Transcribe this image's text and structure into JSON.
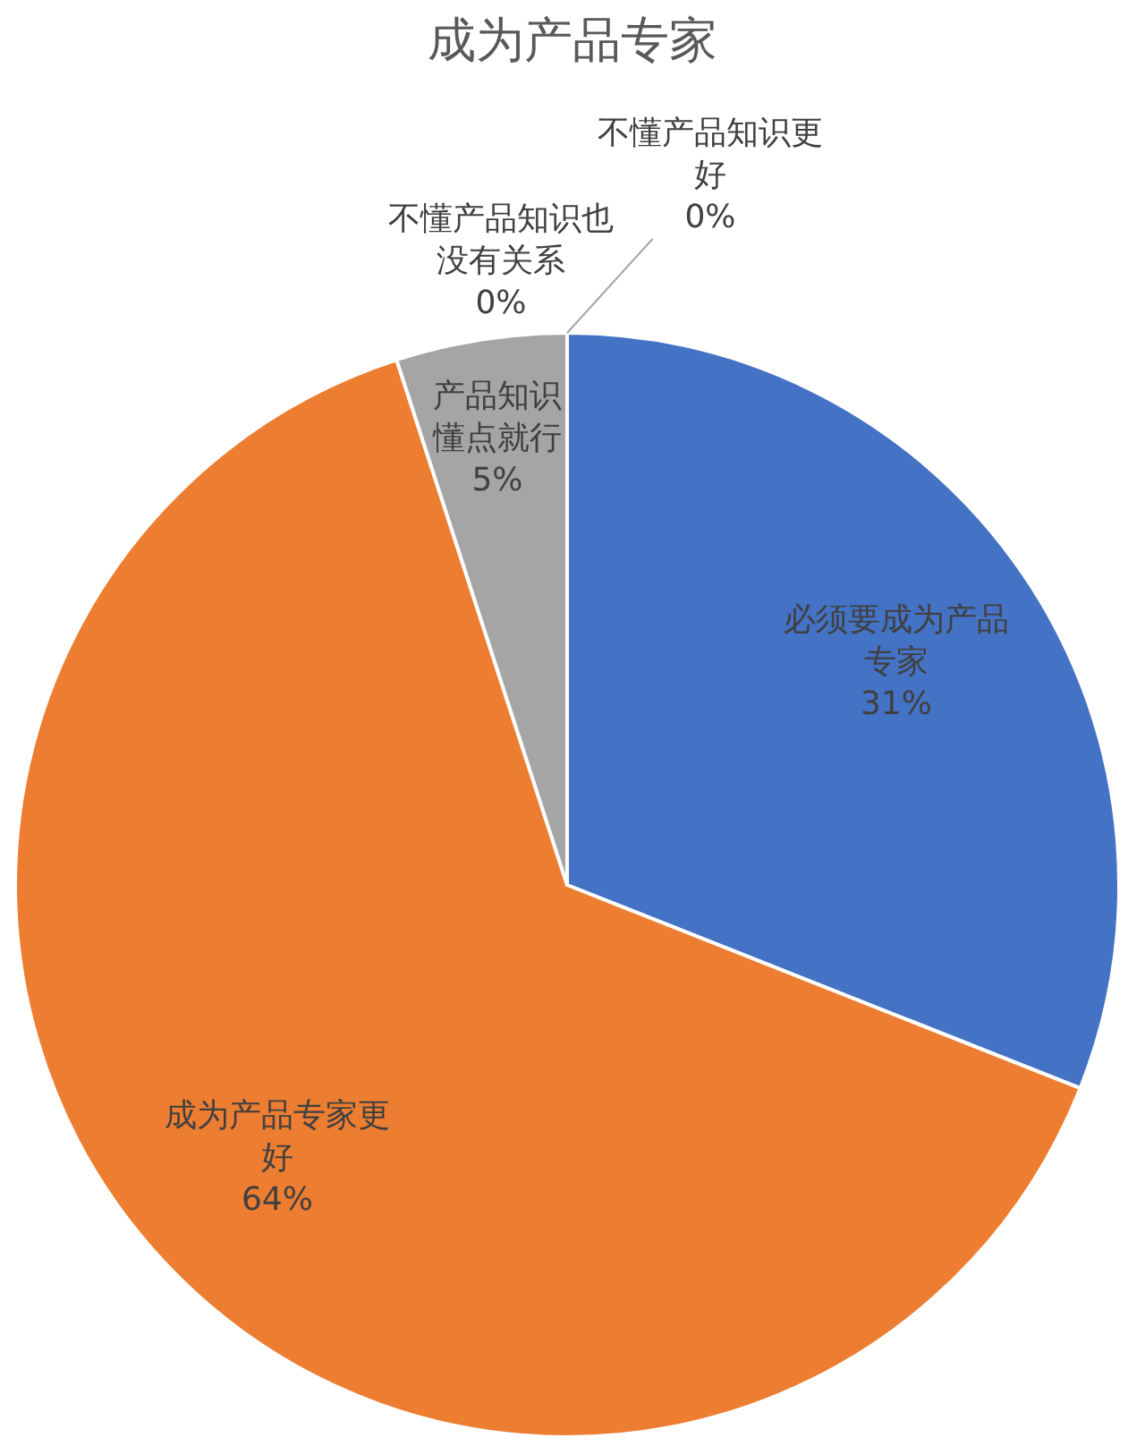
{
  "chart_data": {
    "type": "pie",
    "title": "成为产品专家",
    "categories": [
      "必须要成为产品专家",
      "成为产品专家更好",
      "产品知识懂点就行",
      "不懂产品知识也没有关系",
      "不懂产品知识更好"
    ],
    "values": [
      31,
      64,
      5,
      0,
      0
    ],
    "value_labels": [
      "31%",
      "64%",
      "5%",
      "0%",
      "0%"
    ],
    "colors": [
      "#4472c4",
      "#ed7d31",
      "#a5a5a5",
      "#ffc000",
      "#5b9bd5"
    ]
  }
}
